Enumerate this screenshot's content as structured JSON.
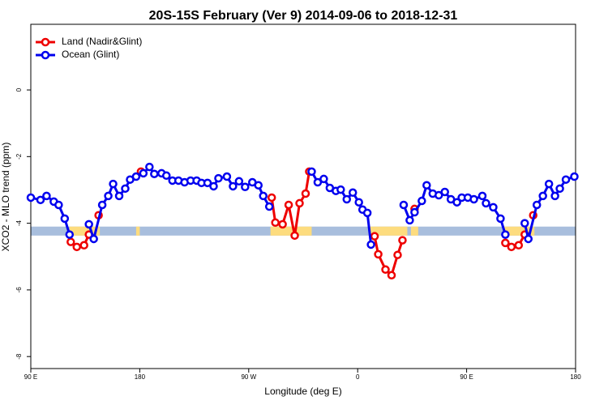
{
  "chart_data": {
    "type": "line",
    "title": "20S-15S February (Ver 9)   2014-09-06 to 2018-12-31",
    "xlabel": "Longitude (deg E)",
    "ylabel": "XCO2 - MLO trend (ppm)",
    "xlim": [
      90,
      540
    ],
    "ylim": [
      -8.36,
      1.97
    ],
    "xticks": [
      {
        "value": 90,
        "label": "90 E"
      },
      {
        "value": 180,
        "label": "180"
      },
      {
        "value": 270,
        "label": "90 W"
      },
      {
        "value": 360,
        "label": "0"
      },
      {
        "value": 450,
        "label": "90 E"
      },
      {
        "value": 540,
        "label": "180"
      }
    ],
    "yticks": [
      0,
      -2,
      -4,
      -6,
      -8
    ],
    "legend": "top-left",
    "band_ylim": [
      -4.37,
      -4.1
    ],
    "ocean_color": "#a8bedd",
    "land_color": "#fddc7e",
    "land_segments": [
      [
        122,
        147
      ],
      [
        177,
        180
      ],
      [
        288,
        322
      ],
      [
        369,
        401
      ],
      [
        404,
        410
      ],
      [
        480,
        506
      ]
    ],
    "series": [
      {
        "name": "Land (Nadir&Glint)",
        "color": "#ee0000",
        "x": [
          123,
          128,
          134,
          138,
          null,
          146,
          null,
          181,
          null,
          289,
          292,
          298,
          303,
          308,
          312,
          317,
          320,
          null,
          374,
          377,
          383,
          388,
          393,
          397,
          null,
          407,
          null,
          482,
          487,
          493,
          498,
          null,
          505
        ],
        "values": [
          -4.56,
          -4.71,
          -4.66,
          -4.34,
          null,
          -3.76,
          null,
          -2.45,
          null,
          -3.23,
          -3.98,
          -4.03,
          -3.45,
          -4.37,
          -3.4,
          -3.11,
          -2.45,
          null,
          -4.39,
          -4.93,
          -5.39,
          -5.56,
          -4.95,
          -4.51,
          null,
          -3.57,
          null,
          -4.59,
          -4.71,
          -4.66,
          -4.34,
          null,
          -3.76
        ]
      },
      {
        "name": "Ocean (Glint)",
        "color": "#0000ee",
        "x": [
          90,
          98,
          103,
          109,
          113,
          118,
          122,
          null,
          138,
          142,
          149,
          154,
          158,
          163,
          168,
          172,
          177,
          183,
          188,
          192,
          198,
          202,
          207,
          212,
          217,
          222,
          227,
          231,
          236,
          241,
          245,
          252,
          257,
          262,
          267,
          273,
          278,
          282,
          287,
          null,
          322,
          327,
          332,
          337,
          342,
          346,
          351,
          356,
          361,
          364,
          368,
          371,
          null,
          398,
          403,
          407,
          413,
          417,
          422,
          427,
          432,
          437,
          442,
          446,
          451,
          456,
          463,
          466,
          472,
          478,
          482,
          null,
          498,
          501,
          508,
          513,
          518,
          523,
          527,
          532,
          539
        ],
        "values": [
          -3.23,
          -3.3,
          -3.18,
          -3.35,
          -3.45,
          -3.86,
          -4.34,
          null,
          -4.03,
          -4.47,
          -3.45,
          -3.18,
          -2.82,
          -3.18,
          -2.96,
          -2.69,
          -2.6,
          -2.5,
          -2.31,
          -2.52,
          -2.5,
          -2.57,
          -2.72,
          -2.72,
          -2.77,
          -2.72,
          -2.72,
          -2.79,
          -2.79,
          -2.89,
          -2.65,
          -2.6,
          -2.89,
          -2.74,
          -2.91,
          -2.77,
          -2.86,
          -3.18,
          -3.5,
          null,
          -2.45,
          -2.77,
          -2.67,
          -2.94,
          -3.03,
          -2.99,
          -3.28,
          -3.08,
          -3.37,
          -3.59,
          -3.69,
          -4.64,
          null,
          -3.45,
          -3.91,
          -3.67,
          -3.33,
          -2.86,
          -3.11,
          -3.16,
          -3.06,
          -3.28,
          -3.37,
          -3.23,
          -3.23,
          -3.28,
          -3.18,
          -3.4,
          -3.52,
          -3.86,
          -4.34,
          null,
          -4.0,
          -4.47,
          -3.45,
          -3.18,
          -2.82,
          -3.18,
          -2.96,
          -2.69,
          -2.6
        ]
      }
    ]
  }
}
